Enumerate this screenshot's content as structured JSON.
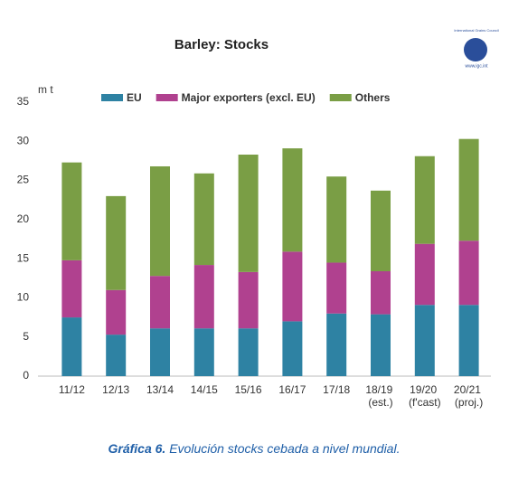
{
  "chart_data": {
    "type": "bar",
    "stacked": true,
    "title": "Barley: Stocks",
    "y_label": "m t",
    "logo": {
      "name": "International Grains Council",
      "url": "www.igc.int"
    },
    "categories": [
      "11/12",
      "12/13",
      "13/14",
      "14/15",
      "15/16",
      "16/17",
      "17/18",
      "18/19 (est.)",
      "19/20 (f'cast)",
      "20/21 (proj.)"
    ],
    "series": [
      {
        "name": "EU",
        "color": "#2e82a3",
        "values": [
          7.5,
          5.3,
          6.1,
          6.1,
          6.1,
          7.0,
          8.0,
          7.9,
          9.1,
          9.1
        ]
      },
      {
        "name": "Major exporters (excl. EU)",
        "color": "#b0418f",
        "values": [
          7.3,
          5.7,
          6.7,
          8.1,
          7.2,
          8.9,
          6.5,
          5.5,
          7.8,
          8.2
        ]
      },
      {
        "name": "Others",
        "color": "#7a9e45",
        "values": [
          12.5,
          12.0,
          14.0,
          11.7,
          15.0,
          13.2,
          11.0,
          10.3,
          11.2,
          13.0
        ]
      }
    ],
    "ylim": [
      0,
      35
    ],
    "yticks": [
      0,
      5,
      10,
      15,
      20,
      25,
      30,
      35
    ],
    "grid": false,
    "caption": {
      "label": "Gráfica 6.",
      "text": "Evolución stocks cebada a nivel mundial."
    }
  }
}
